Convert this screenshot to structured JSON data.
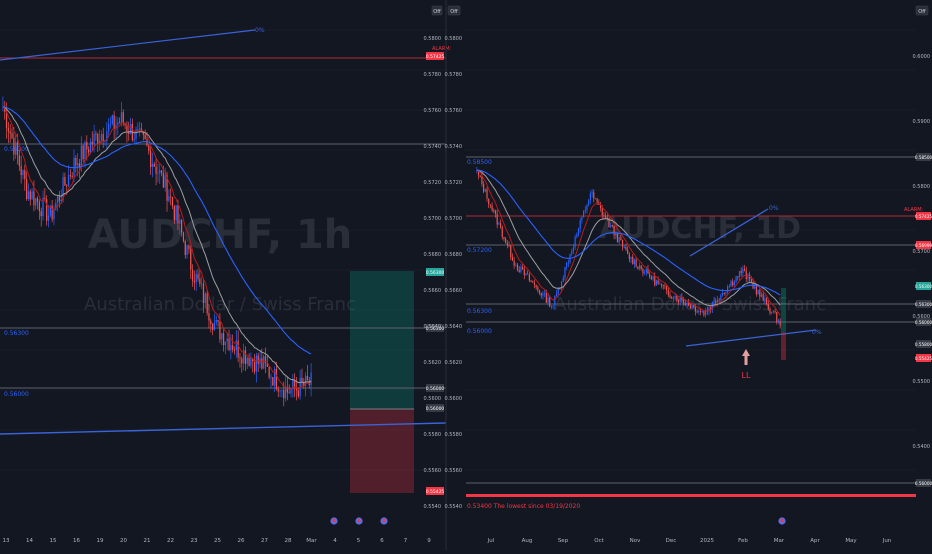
{
  "colors": {
    "background": "#131722",
    "grid": "#1e2230",
    "up_candle": "#2962ff",
    "down_candle": "#ef5350",
    "ema_fast": "#b71c1c",
    "ema_mid": "#9e9e9e",
    "ema_slow": "#2962ff",
    "trendline": "#3a63d8",
    "axis_text": "#b2b5be",
    "level_label_bg": "#363a45",
    "alarm_red": "#f23645",
    "tp_zone": "rgba(8,153,129,0.28)",
    "sl_zone": "rgba(242,54,69,0.28)",
    "current_price_bg": "#26a69a",
    "divider": "#2a2e39"
  },
  "left_chart": {
    "watermark_symbol": "AUDCHF, 1h",
    "watermark_name": "Australian Dollar / Swiss Franc",
    "corner_badge": "Off",
    "ticker_label": "0%",
    "alarm_label": "ALARM:",
    "level_labels": {
      "upper": "0.56300",
      "lower": "0.56000"
    },
    "x_labels": [
      "13",
      "14",
      "15",
      "16",
      "19",
      "20",
      "21",
      "22",
      "23",
      "25",
      "26",
      "27",
      "28",
      "Mar",
      "4",
      "5",
      "6",
      "7",
      "9"
    ],
    "event_icons": [
      "flag-icon",
      "flag-icon",
      "flag-icon"
    ]
  },
  "right_chart": {
    "watermark_symbol": "AUDCHF, 1D",
    "watermark_name": "Australian Dollar / Swiss Franc",
    "corner_badge": "Off",
    "ticker_label": "0%",
    "alarm_label": "ALARM:",
    "annotation": "LL",
    "lowest_note": "0.53400   The lowest since 03/19/2020",
    "level_labels": {
      "top": "0.58500",
      "mid": "0.57200",
      "lower1": "0.56300",
      "lower2": "0.56000"
    },
    "y_labels": [
      "0.5800",
      "0.5780",
      "0.5760",
      "0.5740",
      "0.5720",
      "0.5700",
      "0.5680",
      "0.5660",
      "0.5640",
      "0.5620",
      "0.5600",
      "0.5580",
      "0.5560",
      "0.5540"
    ],
    "right_y_labels": [
      "0.6000",
      "0.5900",
      "0.5800",
      "0.5700",
      "0.5600",
      "0.5500",
      "0.5400"
    ],
    "x_labels": [
      "Jul",
      "Aug",
      "Sep",
      "Oct",
      "Nov",
      "Dec",
      "2025",
      "Feb",
      "Mar",
      "Apr",
      "May",
      "Jun"
    ],
    "price_tags": [
      "0.57425",
      "0.56999",
      "0.56300",
      "0.56000",
      "0.55800",
      "0.55425"
    ]
  },
  "chart_data": [
    {
      "type": "line",
      "title": "AUDCHF, 1h",
      "x": [
        "13",
        "14",
        "15",
        "16",
        "19",
        "20",
        "21",
        "22",
        "23",
        "25",
        "26",
        "27",
        "28",
        "Mar"
      ],
      "series": [
        {
          "values": [
            0.5755,
            0.5712,
            0.5698,
            0.5725,
            0.574,
            0.5748,
            0.5735,
            0.571,
            0.567,
            0.564,
            0.5628,
            0.562,
            0.5607,
            0.5611
          ]
        }
      ],
      "ylim": [
        0.554,
        0.58
      ]
    },
    {
      "type": "line",
      "title": "AUDCHF, 1D",
      "x": [
        "Jul",
        "Aug",
        "Sep",
        "Oct",
        "Nov",
        "Dec",
        "2025",
        "Feb",
        "Mar"
      ],
      "series": [
        {
          "values": [
            0.582,
            0.569,
            0.563,
            0.579,
            0.57,
            0.565,
            0.562,
            0.568,
            0.5605
          ]
        }
      ],
      "ylim": [
        0.534,
        0.605
      ]
    }
  ]
}
